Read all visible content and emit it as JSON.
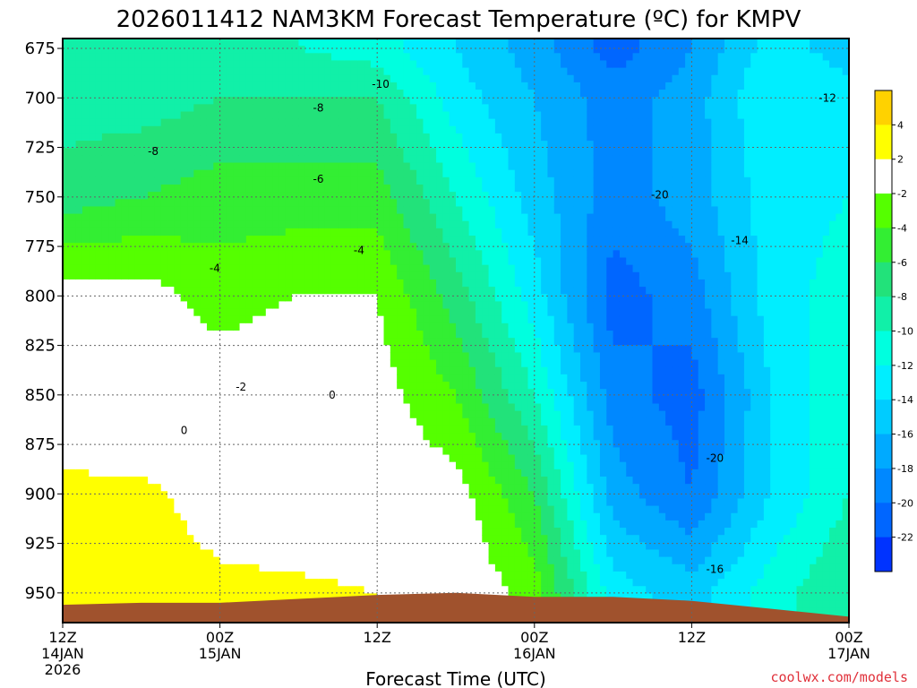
{
  "chart_data": {
    "type": "heatmap",
    "title": "2026011412 NAM3KM Forecast Temperature (ºC) for KMPV",
    "xlabel": "Forecast Time (UTC)",
    "ylabel": "",
    "y_axis": {
      "unit": "hPa",
      "ticks": [
        675,
        700,
        725,
        750,
        775,
        800,
        825,
        850,
        875,
        900,
        925,
        950
      ],
      "range": [
        965,
        670
      ]
    },
    "x_axis": {
      "range_hours": [
        0,
        60
      ],
      "ticks": [
        {
          "hour": 0,
          "lines": [
            "12Z",
            "14JAN",
            "2026"
          ]
        },
        {
          "hour": 12,
          "lines": [
            "00Z",
            "15JAN"
          ]
        },
        {
          "hour": 24,
          "lines": [
            "12Z"
          ]
        },
        {
          "hour": 36,
          "lines": [
            "00Z",
            "16JAN"
          ]
        },
        {
          "hour": 48,
          "lines": [
            "12Z"
          ]
        },
        {
          "hour": 60,
          "lines": [
            "00Z",
            "17JAN"
          ]
        }
      ]
    },
    "colorbar": {
      "ticks": [
        "4",
        "2",
        "-2",
        "-4",
        "-6",
        "-8",
        "-10",
        "-12",
        "-14",
        "-16",
        "-18",
        "-20",
        "-22"
      ],
      "bins": [
        {
          "color": "#ffd200"
        },
        {
          "color": "#ffff00"
        },
        {
          "color": "#ffffff"
        },
        {
          "color": "#55ff00"
        },
        {
          "color": "#33ee33"
        },
        {
          "color": "#22e27a"
        },
        {
          "color": "#11f0a8"
        },
        {
          "color": "#00ffdf"
        },
        {
          "color": "#00eeff"
        },
        {
          "color": "#00ccff"
        },
        {
          "color": "#00aaff"
        },
        {
          "color": "#0088ff"
        },
        {
          "color": "#0066ff"
        },
        {
          "color": "#0033ff"
        }
      ]
    },
    "column_profiles": [
      {
        "hour": 0,
        "t675": -10,
        "t700": -9,
        "t750": -7,
        "t800": -1,
        "t850": 0.5,
        "t900": 2.5,
        "t950": 3
      },
      {
        "hour": 6,
        "t675": -10,
        "t700": -9,
        "t750": -6,
        "t800": -1,
        "t850": -0.5,
        "t900": 2.5,
        "t950": 3
      },
      {
        "hour": 12,
        "t675": -10,
        "t700": -8,
        "t750": -5,
        "t800": -3,
        "t850": -0.5,
        "t900": 1,
        "t950": 2.5
      },
      {
        "hour": 18,
        "t675": -10,
        "t700": -8,
        "t750": -5,
        "t800": -2,
        "t850": 0.5,
        "t900": 0,
        "t950": 2.5
      },
      {
        "hour": 24,
        "t675": -11,
        "t700": -8,
        "t750": -5,
        "t800": -2,
        "t850": -1,
        "t900": -0.5,
        "t950": 2
      },
      {
        "hour": 30,
        "t675": -14,
        "t700": -13,
        "t750": -10,
        "t800": -7,
        "t850": -4,
        "t900": -1,
        "t950": 0
      },
      {
        "hour": 36,
        "t675": -17,
        "t700": -16,
        "t750": -15,
        "t800": -13,
        "t850": -10,
        "t900": -6,
        "t950": -3
      },
      {
        "hour": 42,
        "t675": -21,
        "t700": -19,
        "t750": -19,
        "t800": -21,
        "t850": -19,
        "t900": -17,
        "t950": -13
      },
      {
        "hour": 48,
        "t675": -18,
        "t700": -17,
        "t750": -17,
        "t800": -19,
        "t850": -21,
        "t900": -20,
        "t950": -15
      },
      {
        "hour": 54,
        "t675": -13,
        "t700": -12,
        "t750": -13,
        "t800": -13,
        "t850": -14,
        "t900": -14,
        "t950": -11
      },
      {
        "hour": 60,
        "t675": -15,
        "t700": -13,
        "t750": -12,
        "t800": -11,
        "t850": -10,
        "t900": -10,
        "t950": -8
      }
    ],
    "contour_labels": [
      {
        "text": "-10",
        "hour": 23.6,
        "p": 693
      },
      {
        "text": "-8",
        "hour": 19.1,
        "p": 705
      },
      {
        "text": "-8",
        "hour": 6.5,
        "p": 727
      },
      {
        "text": "-6",
        "hour": 19.1,
        "p": 741
      },
      {
        "text": "-4",
        "hour": 22.2,
        "p": 777
      },
      {
        "text": "-4",
        "hour": 11.2,
        "p": 786
      },
      {
        "text": "-2",
        "hour": 13.2,
        "p": 846
      },
      {
        "text": "0",
        "hour": 20.3,
        "p": 850
      },
      {
        "text": "0",
        "hour": 9.0,
        "p": 868
      },
      {
        "text": "-20",
        "hour": 44.9,
        "p": 749
      },
      {
        "text": "-14",
        "hour": 51.0,
        "p": 772
      },
      {
        "text": "-12",
        "hour": 57.7,
        "p": 700
      },
      {
        "text": "-20",
        "hour": 49.1,
        "p": 882
      },
      {
        "text": "-16",
        "hour": 49.1,
        "p": 938
      }
    ],
    "surface_pressure": [
      {
        "hour": 0,
        "p": 956
      },
      {
        "hour": 6,
        "p": 955
      },
      {
        "hour": 12,
        "p": 955
      },
      {
        "hour": 18,
        "p": 953
      },
      {
        "hour": 24,
        "p": 951
      },
      {
        "hour": 30,
        "p": 950
      },
      {
        "hour": 36,
        "p": 952
      },
      {
        "hour": 42,
        "p": 952
      },
      {
        "hour": 48,
        "p": 954
      },
      {
        "hour": 54,
        "p": 958
      },
      {
        "hour": 60,
        "p": 962
      }
    ]
  },
  "credit": "coolwx.com/models"
}
